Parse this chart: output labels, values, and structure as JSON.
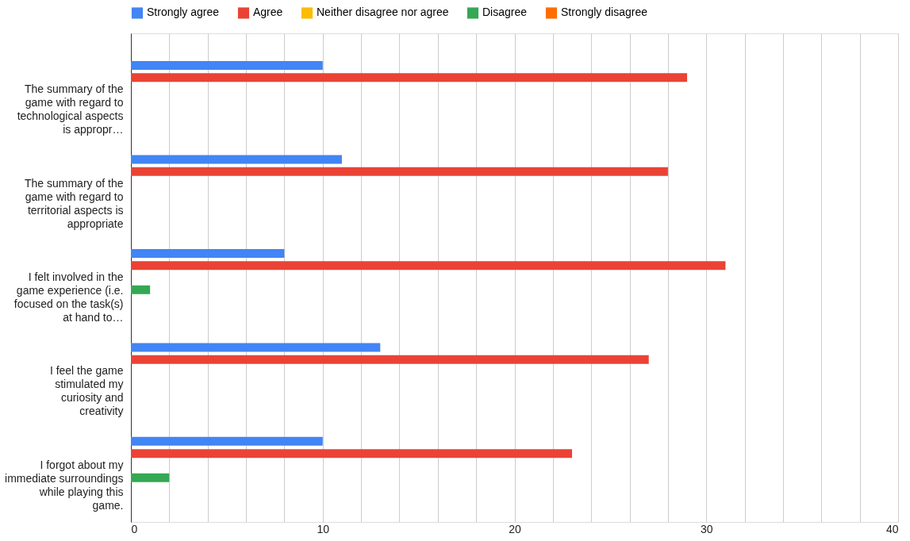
{
  "chart_data": {
    "type": "bar",
    "orientation": "horizontal",
    "legend": "top",
    "grid": "x",
    "categories": [
      "The summary of the game with regard to technological aspects is appropr…",
      "The summary of the game with regard to territorial aspects is appropriate",
      "I felt involved in the game experience (i.e. focused on the task(s) at hand to…",
      "I feel the game stimulated my curiosity and creativity",
      "I forgot about my immediate surroundings while playing this game."
    ],
    "series": [
      {
        "name": "Strongly agree",
        "color": "#4285f4",
        "values": [
          10,
          11,
          8,
          13,
          10
        ]
      },
      {
        "name": "Agree",
        "color": "#ea4335",
        "values": [
          29,
          28,
          31,
          27,
          23
        ]
      },
      {
        "name": "Neither disagree nor agree",
        "color": "#fbbc04",
        "values": [
          0,
          0,
          0,
          0,
          0
        ]
      },
      {
        "name": "Disagree",
        "color": "#34a853",
        "values": [
          0,
          0,
          1,
          0,
          2
        ]
      },
      {
        "name": "Strongly disagree",
        "color": "#ff6d01",
        "values": [
          0,
          0,
          0,
          0,
          0
        ]
      }
    ],
    "xlim": [
      0,
      40
    ],
    "xticks": [
      0,
      {
        "value": 2,
        "label": null
      },
      {
        "value": 4,
        "label": null
      },
      {
        "value": 6,
        "label": null
      },
      {
        "value": 8,
        "label": null
      },
      10,
      {
        "value": 12,
        "label": null
      },
      {
        "value": 14,
        "label": null
      },
      {
        "value": 16,
        "label": null
      },
      {
        "value": 18,
        "label": null
      },
      20,
      {
        "value": 22,
        "label": null
      },
      {
        "value": 24,
        "label": null
      },
      {
        "value": 26,
        "label": null
      },
      {
        "value": 28,
        "label": null
      },
      30,
      {
        "value": 32,
        "label": null
      },
      {
        "value": 34,
        "label": null
      },
      {
        "value": 36,
        "label": null
      },
      {
        "value": 38,
        "label": null
      },
      40
    ]
  }
}
